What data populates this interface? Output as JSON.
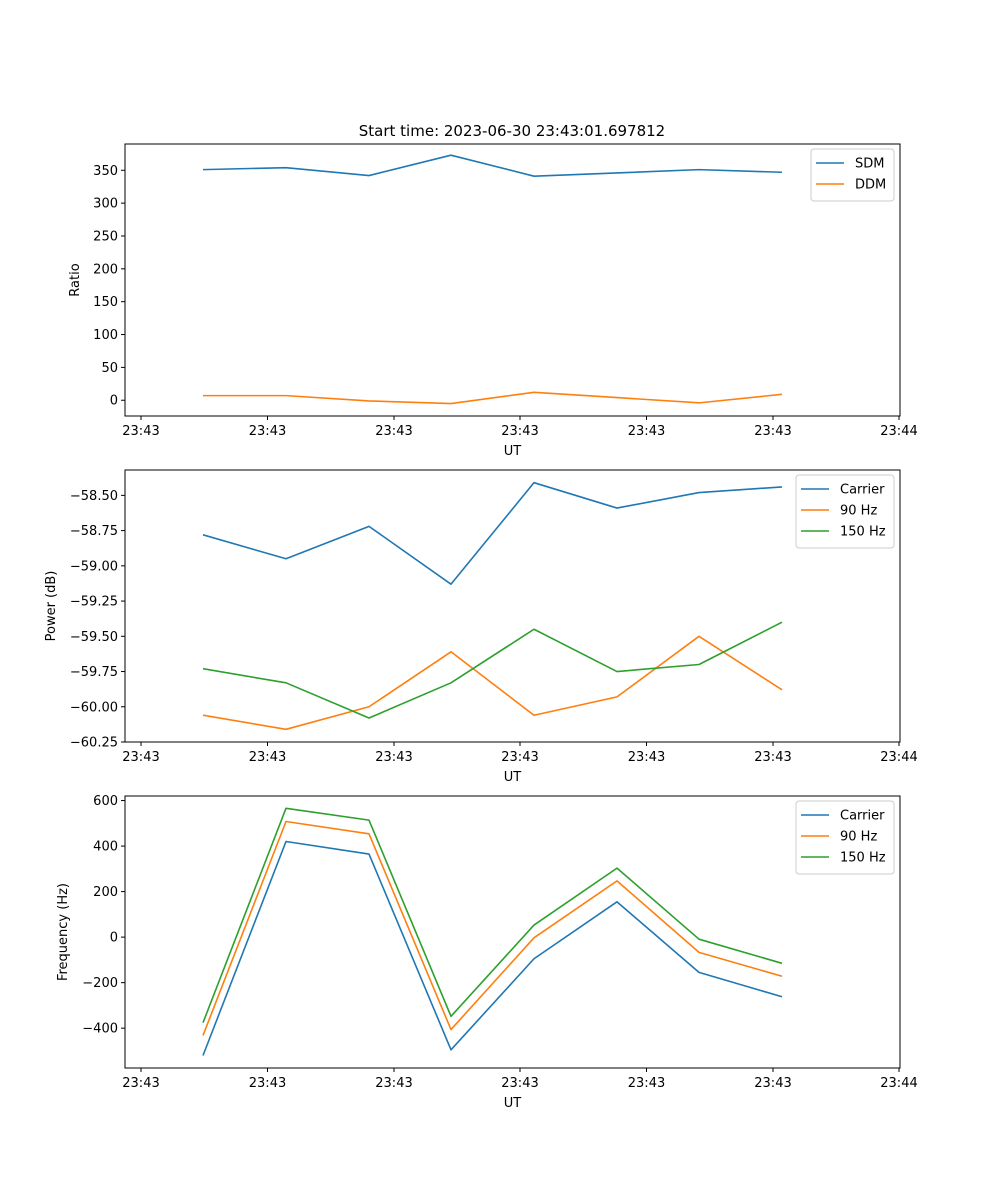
{
  "figure": {
    "title": "Start time: 2023-06-30 23:43:01.697812"
  },
  "colors": {
    "blue": "#1f77b4",
    "orange": "#ff7f0e",
    "green": "#2ca02c"
  },
  "chart_data": [
    {
      "type": "line",
      "title": "Start time: 2023-06-30 23:43:01.697812",
      "xlabel": "UT",
      "ylabel": "Ratio",
      "xticks": [
        "23:43",
        "23:43",
        "23:43",
        "23:43",
        "23:43",
        "23:43",
        "23:44"
      ],
      "yticks": [
        "0",
        "50",
        "100",
        "150",
        "200",
        "250",
        "300",
        "350"
      ],
      "ytick_values": [
        0,
        50,
        100,
        150,
        200,
        250,
        300,
        350
      ],
      "ylim": [
        -24,
        390
      ],
      "legend": "top-right",
      "series": [
        {
          "name": "SDM",
          "color": "#1f77b4",
          "values": [
            351,
            354,
            342,
            373,
            341,
            346,
            351,
            347
          ]
        },
        {
          "name": "DDM",
          "color": "#ff7f0e",
          "values": [
            7,
            7,
            -1,
            -5,
            12,
            4,
            -4,
            9
          ]
        }
      ]
    },
    {
      "type": "line",
      "title": "",
      "xlabel": "UT",
      "ylabel": "Power (dB)",
      "xticks": [
        "23:43",
        "23:43",
        "23:43",
        "23:43",
        "23:43",
        "23:43",
        "23:44"
      ],
      "yticks": [
        "−58.50",
        "−58.75",
        "−59.00",
        "−59.25",
        "−59.50",
        "−59.75",
        "−60.00",
        "−60.25"
      ],
      "ytick_values": [
        -58.5,
        -58.75,
        -59.0,
        -59.25,
        -59.5,
        -59.75,
        -60.0,
        -60.25
      ],
      "ylim": [
        -60.25,
        -58.32
      ],
      "legend": "top-right",
      "series": [
        {
          "name": "Carrier",
          "color": "#1f77b4",
          "values": [
            -58.78,
            -58.95,
            -58.72,
            -59.13,
            -58.41,
            -58.59,
            -58.48,
            -58.44
          ]
        },
        {
          "name": "90 Hz",
          "color": "#ff7f0e",
          "values": [
            -60.06,
            -60.16,
            -60.0,
            -59.61,
            -60.06,
            -59.93,
            -59.5,
            -59.88
          ]
        },
        {
          "name": "150 Hz",
          "color": "#2ca02c",
          "values": [
            -59.73,
            -59.83,
            -60.08,
            -59.83,
            -59.45,
            -59.75,
            -59.7,
            -59.4
          ]
        }
      ]
    },
    {
      "type": "line",
      "title": "",
      "xlabel": "UT",
      "ylabel": "Frequency (Hz)",
      "xticks": [
        "23:43",
        "23:43",
        "23:43",
        "23:43",
        "23:43",
        "23:43",
        "23:44"
      ],
      "yticks": [
        "600",
        "400",
        "200",
        "0",
        "−200",
        "−400"
      ],
      "ytick_values": [
        600,
        400,
        200,
        0,
        -200,
        -400
      ],
      "ylim": [
        -575,
        620
      ],
      "legend": "top-right",
      "series": [
        {
          "name": "Carrier",
          "color": "#1f77b4",
          "values": [
            -520,
            420,
            365,
            -495,
            -95,
            155,
            -155,
            -262
          ]
        },
        {
          "name": "90 Hz",
          "color": "#ff7f0e",
          "values": [
            -432,
            508,
            454,
            -406,
            -3,
            247,
            -67,
            -172
          ]
        },
        {
          "name": "150 Hz",
          "color": "#2ca02c",
          "values": [
            -376,
            566,
            514,
            -348,
            53,
            303,
            -9,
            -115
          ]
        }
      ]
    }
  ]
}
